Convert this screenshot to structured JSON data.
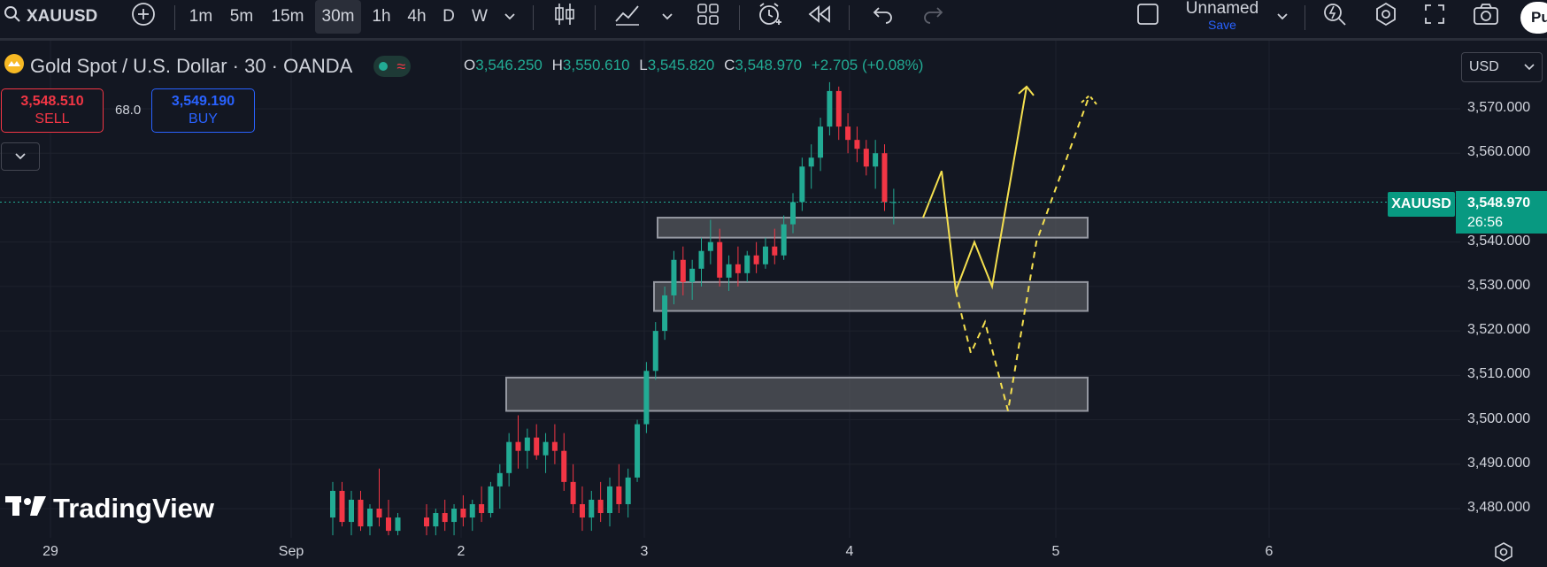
{
  "toolbar": {
    "symbol": "XAUUSD",
    "timeframes": [
      "1m",
      "5m",
      "15m",
      "30m",
      "1h",
      "4h",
      "D",
      "W"
    ],
    "active_timeframe": "30m",
    "layout_name": "Unnamed",
    "save_label": "Save",
    "publish_label": "Pu"
  },
  "legend": {
    "title": "Gold Spot / U.S. Dollar · 30 · OANDA",
    "o_label": "O",
    "o_value": "3,546.250",
    "h_label": "H",
    "h_value": "3,550.610",
    "l_label": "L",
    "l_value": "3,545.820",
    "c_label": "C",
    "c_value": "3,548.970",
    "change": "+2.705 (+0.08%)"
  },
  "trade": {
    "sell_price": "3,548.510",
    "sell_label": "SELL",
    "spread": "68.0",
    "buy_price": "3,549.190",
    "buy_label": "BUY"
  },
  "currency": "USD",
  "price_axis": {
    "labels": [
      "3,570.000",
      "3,560.000",
      "3,540.000",
      "3,530.000",
      "3,520.000",
      "3,510.000",
      "3,500.000",
      "3,490.000",
      "3,480.000"
    ],
    "symbol_tag": "XAUUSD",
    "last_price": "3,548.970",
    "countdown": "26:56"
  },
  "time_axis": {
    "labels": [
      "29",
      "Sep",
      "2",
      "3",
      "4",
      "5",
      "6"
    ]
  },
  "watermark": "TradingView",
  "colors": {
    "background": "#131722",
    "up": "#22ab94",
    "down": "#f23645",
    "projection": "#f5e04f",
    "zone_fill": "#5d5f66"
  },
  "chart_data": {
    "type": "candlestick",
    "ylim": [
      3473.5,
      3578
    ],
    "zones": [
      {
        "low": 3541,
        "high": 3545.5
      },
      {
        "low": 3524.5,
        "high": 3531
      },
      {
        "low": 3502,
        "high": 3509.5
      }
    ],
    "candles": [
      {
        "o": 3478,
        "h": 3486,
        "l": 3474,
        "c": 3484
      },
      {
        "o": 3484,
        "h": 3486,
        "l": 3476,
        "c": 3477
      },
      {
        "o": 3477,
        "h": 3484,
        "l": 3474,
        "c": 3482
      },
      {
        "o": 3482,
        "h": 3484,
        "l": 3475,
        "c": 3476
      },
      {
        "o": 3476,
        "h": 3481,
        "l": 3474,
        "c": 3480
      },
      {
        "o": 3480,
        "h": 3489,
        "l": 3476,
        "c": 3478
      },
      {
        "o": 3478,
        "h": 3482,
        "l": 3474,
        "c": 3475
      },
      {
        "o": 3475,
        "h": 3479,
        "l": 3474,
        "c": 3478
      },
      {
        "o": 3478,
        "h": 3481,
        "l": 3474,
        "c": 3476
      },
      {
        "o": 3476,
        "h": 3480,
        "l": 3474,
        "c": 3479
      },
      {
        "o": 3479,
        "h": 3482,
        "l": 3475,
        "c": 3477
      },
      {
        "o": 3477,
        "h": 3481,
        "l": 3474,
        "c": 3480
      },
      {
        "o": 3480,
        "h": 3483,
        "l": 3476,
        "c": 3478
      },
      {
        "o": 3478,
        "h": 3482,
        "l": 3475,
        "c": 3481
      },
      {
        "o": 3481,
        "h": 3485,
        "l": 3477,
        "c": 3479
      },
      {
        "o": 3479,
        "h": 3486,
        "l": 3478,
        "c": 3485
      },
      {
        "o": 3485,
        "h": 3490,
        "l": 3480,
        "c": 3488
      },
      {
        "o": 3488,
        "h": 3497,
        "l": 3485,
        "c": 3495
      },
      {
        "o": 3495,
        "h": 3501,
        "l": 3489,
        "c": 3493
      },
      {
        "o": 3493,
        "h": 3498,
        "l": 3489,
        "c": 3496
      },
      {
        "o": 3496,
        "h": 3499,
        "l": 3491,
        "c": 3492
      },
      {
        "o": 3492,
        "h": 3497,
        "l": 3488,
        "c": 3495
      },
      {
        "o": 3495,
        "h": 3499,
        "l": 3490,
        "c": 3493
      },
      {
        "o": 3493,
        "h": 3497,
        "l": 3484,
        "c": 3486
      },
      {
        "o": 3486,
        "h": 3490,
        "l": 3479,
        "c": 3481
      },
      {
        "o": 3481,
        "h": 3485,
        "l": 3475,
        "c": 3478
      },
      {
        "o": 3478,
        "h": 3484,
        "l": 3475,
        "c": 3482
      },
      {
        "o": 3482,
        "h": 3486,
        "l": 3477,
        "c": 3479
      },
      {
        "o": 3479,
        "h": 3487,
        "l": 3476,
        "c": 3485
      },
      {
        "o": 3485,
        "h": 3490,
        "l": 3479,
        "c": 3481
      },
      {
        "o": 3481,
        "h": 3489,
        "l": 3478,
        "c": 3487
      },
      {
        "o": 3487,
        "h": 3500,
        "l": 3486,
        "c": 3499
      },
      {
        "o": 3499,
        "h": 3513,
        "l": 3497,
        "c": 3511
      },
      {
        "o": 3511,
        "h": 3522,
        "l": 3509,
        "c": 3520
      },
      {
        "o": 3520,
        "h": 3530,
        "l": 3518,
        "c": 3528
      },
      {
        "o": 3528,
        "h": 3538,
        "l": 3526,
        "c": 3536
      },
      {
        "o": 3536,
        "h": 3539,
        "l": 3528,
        "c": 3531
      },
      {
        "o": 3531,
        "h": 3536,
        "l": 3527,
        "c": 3534
      },
      {
        "o": 3534,
        "h": 3541,
        "l": 3530,
        "c": 3538
      },
      {
        "o": 3538,
        "h": 3545,
        "l": 3535,
        "c": 3540
      },
      {
        "o": 3540,
        "h": 3543,
        "l": 3530,
        "c": 3532
      },
      {
        "o": 3532,
        "h": 3537,
        "l": 3529,
        "c": 3535
      },
      {
        "o": 3535,
        "h": 3539,
        "l": 3530,
        "c": 3533
      },
      {
        "o": 3533,
        "h": 3538,
        "l": 3531,
        "c": 3537
      },
      {
        "o": 3537,
        "h": 3540,
        "l": 3533,
        "c": 3535
      },
      {
        "o": 3535,
        "h": 3541,
        "l": 3534,
        "c": 3539
      },
      {
        "o": 3539,
        "h": 3543,
        "l": 3535,
        "c": 3537
      },
      {
        "o": 3537,
        "h": 3546,
        "l": 3536,
        "c": 3544
      },
      {
        "o": 3544,
        "h": 3551,
        "l": 3542,
        "c": 3549
      },
      {
        "o": 3549,
        "h": 3559,
        "l": 3547,
        "c": 3557
      },
      {
        "o": 3557,
        "h": 3562,
        "l": 3552,
        "c": 3559
      },
      {
        "o": 3559,
        "h": 3568,
        "l": 3556,
        "c": 3566
      },
      {
        "o": 3566,
        "h": 3576,
        "l": 3564,
        "c": 3574
      },
      {
        "o": 3574,
        "h": 3575,
        "l": 3563,
        "c": 3566
      },
      {
        "o": 3566,
        "h": 3569,
        "l": 3560,
        "c": 3563
      },
      {
        "o": 3563,
        "h": 3566,
        "l": 3558,
        "c": 3561
      },
      {
        "o": 3561,
        "h": 3563,
        "l": 3555,
        "c": 3557
      },
      {
        "o": 3557,
        "h": 3563,
        "l": 3552,
        "c": 3560
      },
      {
        "o": 3560,
        "h": 3562,
        "l": 3547,
        "c": 3549
      },
      {
        "o": 3549,
        "h": 3552,
        "l": 3544,
        "c": 3549
      }
    ],
    "projection_solid": [
      [
        3545.5,
        0
      ],
      [
        3556,
        1
      ],
      [
        3529,
        2
      ],
      [
        3540,
        3
      ],
      [
        3530,
        4
      ],
      [
        3575,
        5
      ]
    ],
    "projection_dashed": [
      [
        3529,
        0
      ],
      [
        3515,
        1
      ],
      [
        3522,
        2
      ],
      [
        3502,
        3
      ],
      [
        3540,
        4
      ],
      [
        3573,
        5
      ]
    ]
  }
}
